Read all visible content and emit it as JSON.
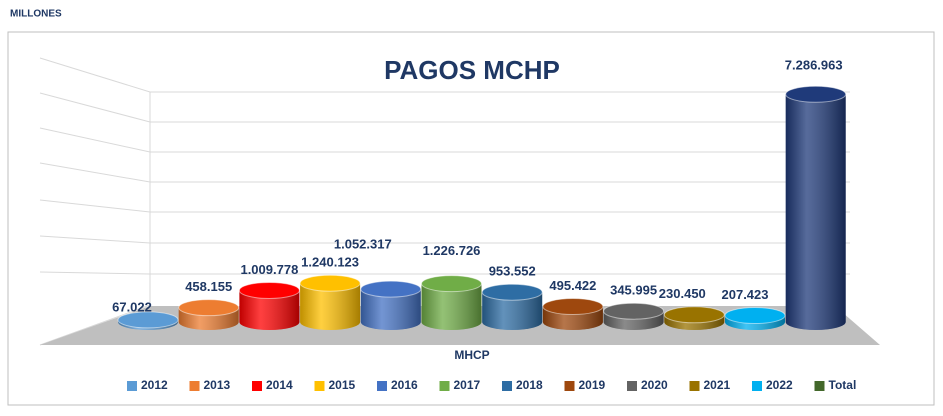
{
  "header": "MILLONES",
  "chart_data": {
    "type": "bar3d",
    "title": "PAGOS MCHP",
    "xlabel": "MHCP",
    "categories": [
      "2012",
      "2013",
      "2014",
      "2015",
      "2016",
      "2017",
      "2018",
      "2019",
      "2020",
      "2021",
      "2022",
      "Total"
    ],
    "values": [
      67022,
      458155,
      1009778,
      1240123,
      1052317,
      1226726,
      953552,
      495422,
      345995,
      230450,
      207423,
      7286963
    ],
    "value_labels": [
      "67.022",
      "458.155",
      "1.009.778",
      "1.240.123",
      "1.052.317",
      "1.226.726",
      "953.552",
      "495.422",
      "345.995",
      "230.450",
      "207.423",
      "7.286.963"
    ],
    "colors": [
      "#5b9bd5",
      "#ed7d31",
      "#ff0000",
      "#ffc000",
      "#4472c4",
      "#70ad47",
      "#2e6da4",
      "#9e480e",
      "#636363",
      "#997300",
      "#00b0f0",
      "#1f3a7a"
    ],
    "legend_colors": [
      "#5b9bd5",
      "#ed7d31",
      "#ff0000",
      "#ffc000",
      "#4472c4",
      "#70ad47",
      "#2e6da4",
      "#9e480e",
      "#636363",
      "#997300",
      "#00b0f0",
      "#43682b"
    ],
    "ylim": [
      0,
      8000000
    ]
  }
}
